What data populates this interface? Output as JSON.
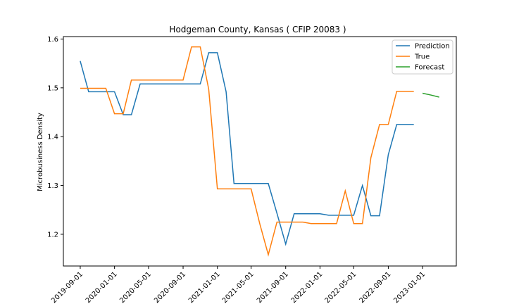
{
  "chart_data": {
    "type": "line",
    "title": "Hodgeman County, Kansas ( CFIP 20083 )",
    "xlabel": "",
    "ylabel": "Microbusiness Density",
    "xlim": [
      "2019-07-03",
      "2023-05-01"
    ],
    "ylim": [
      1.135,
      1.605
    ],
    "grid": false,
    "legend_position": "top-right",
    "x_ticks": [
      "2019-09-01",
      "2020-01-01",
      "2020-05-01",
      "2020-09-01",
      "2021-01-01",
      "2021-05-01",
      "2021-09-01",
      "2022-01-01",
      "2022-05-01",
      "2022-09-01",
      "2023-01-01"
    ],
    "y_ticks": [
      1.2,
      1.3,
      1.4,
      1.5,
      1.6
    ],
    "series": [
      {
        "name": "Prediction",
        "color": "#1f77b4",
        "x": [
          "2019-09-01",
          "2019-10-01",
          "2019-11-01",
          "2019-12-01",
          "2020-01-01",
          "2020-02-01",
          "2020-03-01",
          "2020-04-01",
          "2020-05-01",
          "2020-06-01",
          "2020-07-01",
          "2020-08-01",
          "2020-09-01",
          "2020-10-01",
          "2020-11-01",
          "2020-12-01",
          "2021-01-01",
          "2021-02-01",
          "2021-03-01",
          "2021-04-01",
          "2021-05-01",
          "2021-06-01",
          "2021-07-01",
          "2021-08-01",
          "2021-09-01",
          "2021-10-01",
          "2021-11-01",
          "2021-12-01",
          "2022-01-01",
          "2022-02-01",
          "2022-03-01",
          "2022-04-01",
          "2022-05-01",
          "2022-06-01",
          "2022-07-01",
          "2022-08-01",
          "2022-09-01",
          "2022-10-01",
          "2022-11-01",
          "2022-12-01"
        ],
        "values": [
          1.555,
          1.492,
          1.492,
          1.492,
          1.492,
          1.445,
          1.445,
          1.508,
          1.508,
          1.508,
          1.508,
          1.508,
          1.508,
          1.508,
          1.508,
          1.572,
          1.572,
          1.492,
          1.304,
          1.304,
          1.304,
          1.304,
          1.304,
          1.243,
          1.18,
          1.242,
          1.242,
          1.242,
          1.242,
          1.239,
          1.239,
          1.239,
          1.239,
          1.3,
          1.238,
          1.238,
          1.363,
          1.425,
          1.425,
          1.425
        ]
      },
      {
        "name": "True",
        "color": "#ff7f0e",
        "x": [
          "2019-09-01",
          "2019-10-01",
          "2019-11-01",
          "2019-12-01",
          "2020-01-01",
          "2020-02-01",
          "2020-03-01",
          "2020-04-01",
          "2020-05-01",
          "2020-06-01",
          "2020-07-01",
          "2020-08-01",
          "2020-09-01",
          "2020-10-01",
          "2020-11-01",
          "2020-12-01",
          "2021-01-01",
          "2021-02-01",
          "2021-03-01",
          "2021-04-01",
          "2021-05-01",
          "2021-06-01",
          "2021-07-01",
          "2021-08-01",
          "2021-09-01",
          "2021-10-01",
          "2021-11-01",
          "2021-12-01",
          "2022-01-01",
          "2022-02-01",
          "2022-03-01",
          "2022-04-01",
          "2022-05-01",
          "2022-06-01",
          "2022-07-01",
          "2022-08-01",
          "2022-09-01",
          "2022-10-01",
          "2022-11-01",
          "2022-12-01"
        ],
        "values": [
          1.499,
          1.499,
          1.499,
          1.499,
          1.447,
          1.447,
          1.516,
          1.516,
          1.516,
          1.516,
          1.516,
          1.516,
          1.516,
          1.584,
          1.584,
          1.497,
          1.293,
          1.293,
          1.293,
          1.293,
          1.293,
          1.221,
          1.158,
          1.225,
          1.225,
          1.225,
          1.225,
          1.222,
          1.222,
          1.222,
          1.222,
          1.289,
          1.222,
          1.222,
          1.357,
          1.425,
          1.425,
          1.493,
          1.493,
          1.493
        ]
      },
      {
        "name": "Forecast",
        "color": "#2ca02c",
        "x": [
          "2023-01-01",
          "2023-02-01",
          "2023-03-01"
        ],
        "values": [
          1.489,
          1.485,
          1.481
        ]
      }
    ]
  }
}
